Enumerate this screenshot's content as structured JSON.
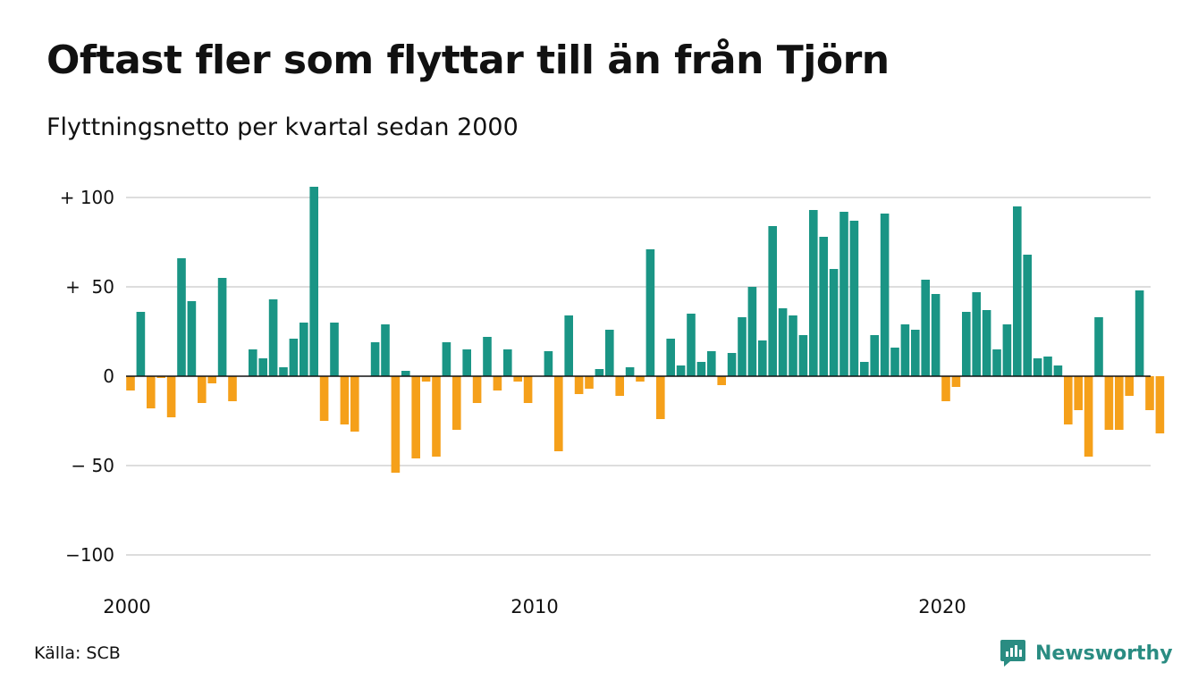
{
  "chart_data": {
    "type": "bar",
    "title": "Oftast fler som flyttar till än från Tjörn",
    "subtitle": "Flyttningsnetto per kvartal sedan 2000",
    "source": "Källa: SCB",
    "brand": "Newsworthy",
    "y_ticks": [
      {
        "value": 100,
        "label": "+ 100"
      },
      {
        "value": 50,
        "label": "+  50"
      },
      {
        "value": 0,
        "label": "0"
      },
      {
        "value": -50,
        "label": "− 50"
      },
      {
        "value": -100,
        "label": "−100"
      }
    ],
    "x_ticks": [
      {
        "year": 2000,
        "label": "2000"
      },
      {
        "year": 2010,
        "label": "2010"
      },
      {
        "year": 2020,
        "label": "2020"
      }
    ],
    "ylim": [
      -100,
      107
    ],
    "start_year": 2000,
    "grid": true,
    "colors": {
      "positive": "#1a9585",
      "negative": "#f5a01a",
      "grid": "#dddddd",
      "axis": "#111111",
      "brand": "#2a8c82"
    },
    "values": [
      -8,
      36,
      -18,
      -1,
      -23,
      66,
      42,
      -15,
      -4,
      55,
      -14,
      0,
      15,
      10,
      43,
      5,
      21,
      30,
      106,
      -25,
      30,
      -27,
      -31,
      0,
      19,
      29,
      -54,
      3,
      -46,
      -3,
      -45,
      19,
      -30,
      15,
      -15,
      22,
      -8,
      15,
      -3,
      -15,
      0,
      14,
      -42,
      34,
      -10,
      -7,
      4,
      26,
      -11,
      5,
      -3,
      71,
      -24,
      21,
      6,
      35,
      8,
      14,
      -5,
      13,
      33,
      50,
      20,
      84,
      38,
      34,
      23,
      93,
      78,
      60,
      92,
      87,
      8,
      23,
      91,
      16,
      29,
      26,
      54,
      46,
      -14,
      -6,
      36,
      47,
      37,
      15,
      29,
      95,
      68,
      10,
      11,
      6,
      -27,
      -19,
      -45,
      33,
      -30,
      -30,
      -11,
      48,
      -19,
      -32
    ]
  }
}
